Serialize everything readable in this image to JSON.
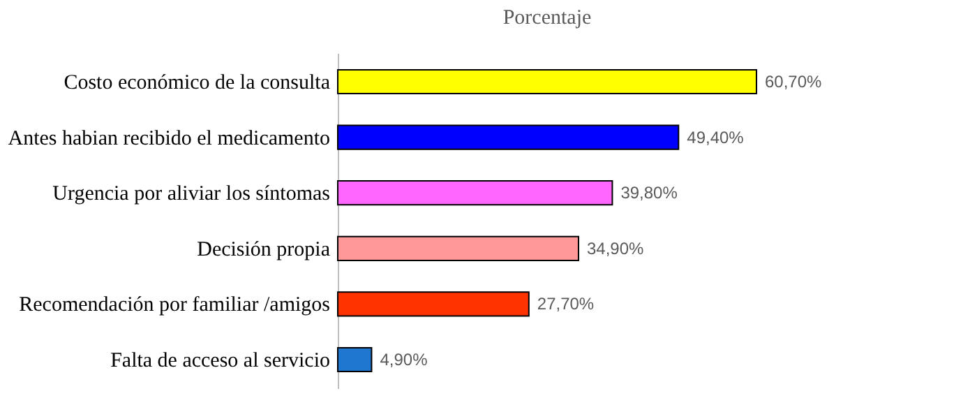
{
  "chart_data": {
    "type": "bar",
    "orientation": "horizontal",
    "title": "Porcentaje",
    "categories": [
      "Costo económico de la consulta",
      "Antes habian recibido el medicamento",
      "Urgencia por aliviar los síntomas",
      "Decisión propia",
      "Recomendación por familiar /amigos",
      "Falta de acceso al servicio"
    ],
    "values": [
      60.7,
      49.4,
      39.8,
      34.9,
      27.7,
      4.9
    ],
    "colors": [
      "#ffff00",
      "#0000ff",
      "#ff66ff",
      "#ff9999",
      "#ff3300",
      "#1f77d0"
    ],
    "value_labels": [
      "60,70%",
      "49,40%",
      "39,80%",
      "34,90%",
      "27,70%",
      "4,90%"
    ]
  }
}
